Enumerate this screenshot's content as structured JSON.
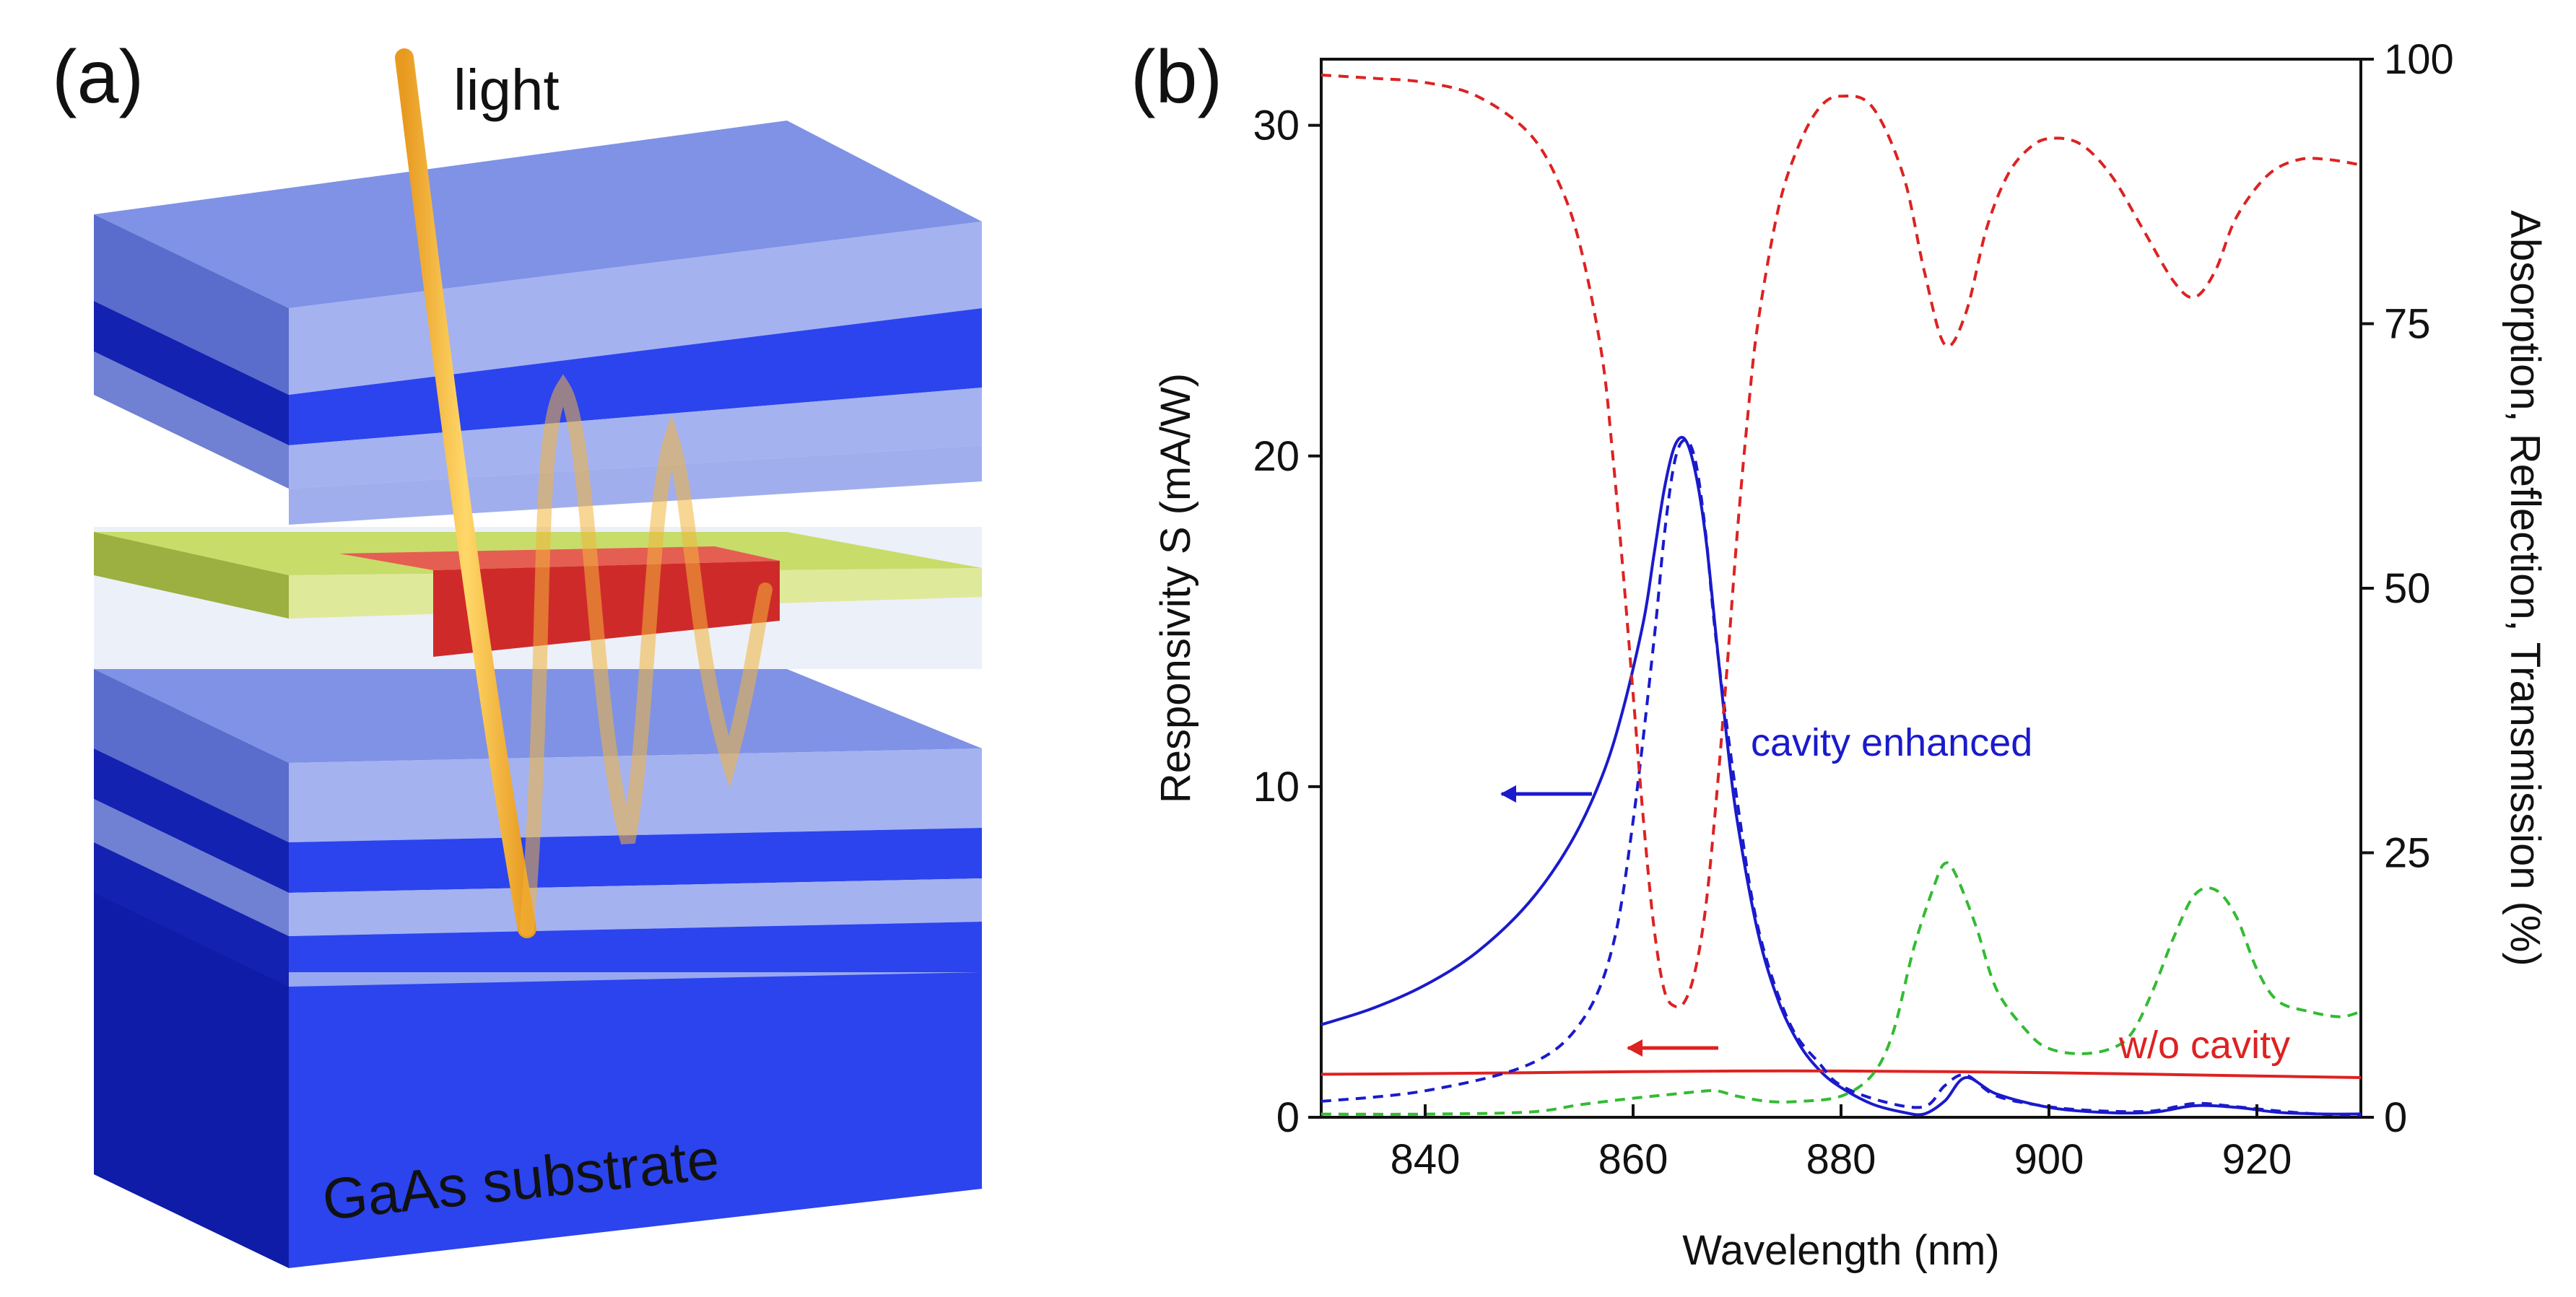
{
  "panel_a": {
    "label": "(a)",
    "light_label": "light",
    "substrate_label": "GaAs substrate"
  },
  "panel_b": {
    "label": "(b)"
  },
  "colors": {
    "blue_curve": "#1a1acc",
    "red_curve": "#dd2222",
    "green_curve": "#33bb33",
    "dbr_dark": "#2b3fe8",
    "dbr_light": "#98a8ee",
    "contact": "#c8dc6a",
    "absorber": "#d63030",
    "light_beam": "#f2b53a"
  },
  "chart_data": {
    "type": "line",
    "title": "",
    "xlabel": "Wavelength (nm)",
    "ylabel": "Responsivity S (mA/W)",
    "y2label": "Absorption, Reflection, Transmission (%)",
    "xlim": [
      830,
      930
    ],
    "ylim": [
      0,
      32
    ],
    "y2lim": [
      0,
      100
    ],
    "xticks": [
      840,
      860,
      880,
      900,
      920
    ],
    "yticks": [
      0,
      10,
      20,
      30
    ],
    "y2ticks": [
      0,
      25,
      50,
      75,
      100
    ],
    "series": [
      {
        "name": "cavity enhanced responsivity",
        "axis": "left",
        "style": "solid",
        "color": "#1a1acc",
        "x": [
          830,
          835,
          840,
          845,
          850,
          854,
          857,
          859,
          861,
          862,
          863,
          864,
          865,
          866,
          867,
          868,
          869,
          870,
          872,
          874,
          876,
          878,
          880,
          883,
          886,
          888,
          890,
          892,
          895,
          900,
          905,
          910,
          914,
          918,
          922,
          926,
          930
        ],
        "y": [
          2.8,
          3.3,
          4.0,
          5.0,
          6.5,
          8.3,
          10.3,
          12.3,
          15.0,
          17.0,
          19.0,
          20.3,
          20.5,
          19.5,
          17.5,
          14.5,
          11.5,
          9.0,
          5.6,
          3.5,
          2.2,
          1.4,
          0.9,
          0.4,
          0.15,
          0.1,
          0.5,
          1.2,
          0.7,
          0.3,
          0.15,
          0.15,
          0.35,
          0.3,
          0.15,
          0.1,
          0.1
        ]
      },
      {
        "name": "w/o cavity responsivity",
        "axis": "left",
        "style": "solid",
        "color": "#dd2222",
        "x": [
          830,
          840,
          850,
          860,
          870,
          880,
          890,
          900,
          910,
          920,
          930
        ],
        "y": [
          1.3,
          1.32,
          1.35,
          1.38,
          1.4,
          1.4,
          1.38,
          1.35,
          1.3,
          1.25,
          1.2
        ]
      },
      {
        "name": "absorption",
        "axis": "right",
        "style": "dashed",
        "color": "#1a1acc",
        "x": [
          830,
          840,
          850,
          855,
          858,
          860,
          862,
          863,
          864,
          865,
          866,
          867,
          868,
          870,
          872,
          875,
          878,
          880,
          884,
          888,
          890,
          892,
          895,
          900,
          905,
          910,
          914,
          918,
          922,
          926,
          930
        ],
        "y": [
          1.5,
          2.5,
          5,
          9,
          16,
          28,
          45,
          55,
          62,
          64,
          62,
          55,
          45,
          30,
          18,
          9,
          5,
          3,
          1.5,
          1,
          3,
          4,
          2,
          1,
          0.6,
          0.6,
          1.3,
          1,
          0.6,
          0.3,
          0.2
        ]
      },
      {
        "name": "reflection",
        "axis": "right",
        "style": "dashed",
        "color": "#dd2222",
        "x": [
          830,
          835,
          840,
          845,
          850,
          853,
          855,
          857,
          858,
          859,
          860,
          861,
          862,
          863,
          864,
          865,
          866,
          867,
          868,
          869,
          870,
          871,
          872,
          874,
          876,
          878,
          880,
          883,
          886,
          888,
          890,
          892,
          894,
          896,
          898,
          900,
          903,
          906,
          909,
          912,
          914,
          916,
          918,
          921,
          924,
          927,
          930
        ],
        "y": [
          98.5,
          98.2,
          97.8,
          96.5,
          93,
          88,
          82,
          72,
          63,
          52,
          40,
          28,
          18,
          12,
          10.5,
          11,
          14,
          20,
          30,
          42,
          55,
          66,
          75,
          86,
          92,
          95.5,
          96.5,
          95.5,
          89,
          80,
          73,
          76,
          84,
          89,
          91.5,
          92.5,
          92,
          89,
          84,
          79,
          77.5,
          80,
          85,
          89,
          90.5,
          90.5,
          90
        ]
      },
      {
        "name": "transmission",
        "axis": "right",
        "style": "dashed",
        "color": "#33bb33",
        "x": [
          830,
          840,
          850,
          855,
          860,
          864,
          866,
          868,
          870,
          873,
          876,
          880,
          883,
          885,
          887,
          889,
          890,
          891,
          893,
          895,
          898,
          900,
          903,
          906,
          908,
          910,
          912,
          914,
          916,
          918,
          920,
          922,
          925,
          928,
          930
        ],
        "y": [
          0.3,
          0.3,
          0.5,
          1.2,
          1.8,
          2.2,
          2.4,
          2.5,
          2,
          1.5,
          1.5,
          2,
          4,
          8,
          16,
          22,
          24,
          23,
          18,
          12,
          8,
          6.5,
          6,
          6.5,
          8,
          12,
          17,
          21,
          21.5,
          19,
          14,
          11,
          10,
          9.5,
          10
        ]
      }
    ],
    "annotations": [
      {
        "text": "cavity enhanced",
        "color": "#1a1acc"
      },
      {
        "text": "w/o cavity",
        "color": "#dd2222"
      }
    ]
  }
}
